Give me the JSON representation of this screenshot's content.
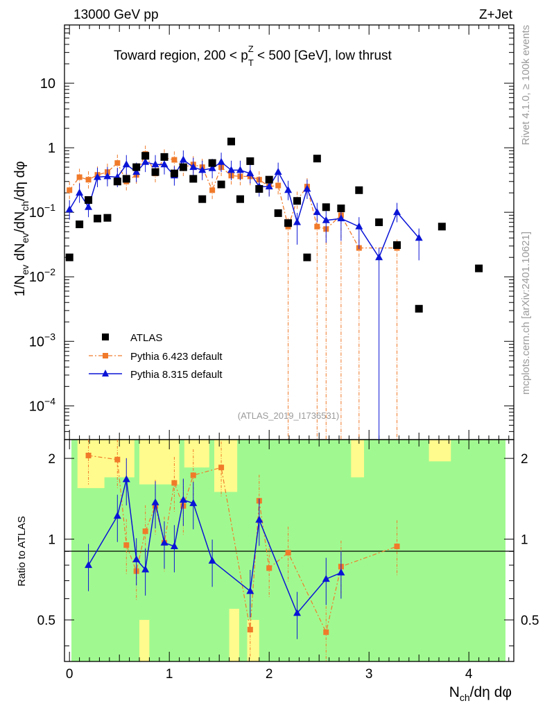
{
  "header": {
    "left": "13000 GeV pp",
    "right": "Z+Jet"
  },
  "side": {
    "rivet": "Rivet 4.1.0, ≥ 100k events",
    "mcplots": "mcplots.cern.ch [arXiv:2401.10621]"
  },
  "chart_data": {
    "type": "scatter",
    "title": "Toward region, 200 < p_T^Z < 500 [GeV], low thrust",
    "title_parts": {
      "a": "Toward region, 200 < p",
      "sub": "T",
      "sup": "Z",
      "b": " < 500 [GeV], low thrust"
    },
    "ylabel_parts": {
      "p1": "1/N",
      "s1": "ev",
      "p2": " dN",
      "s2": "ev",
      "p3": "/dN",
      "s3": "ch",
      "p4": "/dη dφ"
    },
    "xlabel_parts": {
      "p1": "N",
      "s1": "ch",
      "p2": "/dη dφ"
    },
    "ratio_ylabel": "Ratio to ATLAS",
    "analysis_tag": "(ATLAS_2019_I1736531)",
    "xlim": [
      -0.05,
      4.45
    ],
    "ylim": [
      3e-05,
      80
    ],
    "ratio_ylim": [
      0.35,
      2.35
    ],
    "x_ticks": [
      0,
      1,
      2,
      3,
      4
    ],
    "x_tick_labels": [
      "0",
      "1",
      "2",
      "3",
      "4"
    ],
    "y_ticks": [
      {
        "base": "10",
        "exp": "−4",
        "v": 0.0001
      },
      {
        "base": "10",
        "exp": "−3",
        "v": 0.001
      },
      {
        "base": "10",
        "exp": "−2",
        "v": 0.01
      },
      {
        "base": "10",
        "exp": "−1",
        "v": 0.1
      },
      {
        "base": "1",
        "exp": "",
        "v": 1
      },
      {
        "base": "10",
        "exp": "",
        "v": 10
      }
    ],
    "ratio_ticks": [
      0.5,
      1,
      2
    ],
    "ratio_tick_labels": [
      "0.5",
      "1",
      "2"
    ],
    "legend": [
      "ATLAS",
      "Pythia 6.423 default",
      "Pythia 8.315 default"
    ],
    "series": [
      {
        "name": "ATLAS",
        "x": [
          0.0,
          0.1,
          0.19,
          0.28,
          0.38,
          0.48,
          0.57,
          0.67,
          0.76,
          0.86,
          0.95,
          1.05,
          1.14,
          1.24,
          1.33,
          1.43,
          1.52,
          1.62,
          1.71,
          1.81,
          1.9,
          2.0,
          2.09,
          2.19,
          2.28,
          2.38,
          2.48,
          2.57,
          2.72,
          2.9,
          3.1,
          3.28,
          3.5,
          3.73,
          4.1
        ],
        "y": [
          0.02,
          0.065,
          0.155,
          0.08,
          0.082,
          0.3,
          0.33,
          0.5,
          0.75,
          0.42,
          0.72,
          0.4,
          0.5,
          0.33,
          0.16,
          0.58,
          0.27,
          1.25,
          0.16,
          0.62,
          0.23,
          0.32,
          0.097,
          0.068,
          0.15,
          0.02,
          0.68,
          0.12,
          0.115,
          0.22,
          0.07,
          0.031,
          0.0032,
          0.06,
          0.0135
        ]
      },
      {
        "name": "Pythia 6.423 default",
        "x": [
          0.0,
          0.1,
          0.19,
          0.28,
          0.38,
          0.48,
          0.57,
          0.67,
          0.76,
          0.86,
          0.95,
          1.05,
          1.14,
          1.24,
          1.33,
          1.43,
          1.52,
          1.62,
          1.71,
          1.81,
          1.9,
          2.0,
          2.09,
          2.19,
          2.28,
          2.38,
          2.48,
          2.57,
          2.72,
          2.9,
          3.28
        ],
        "y": [
          0.22,
          0.35,
          0.32,
          0.38,
          0.42,
          0.58,
          0.3,
          0.38,
          0.8,
          0.4,
          0.7,
          0.65,
          0.5,
          0.55,
          0.5,
          0.22,
          0.5,
          0.37,
          0.36,
          0.36,
          0.32,
          0.25,
          0.26,
          0.06,
          0.155,
          0.25,
          0.06,
          0.055,
          0.09,
          0.028,
          0.028
        ]
      },
      {
        "name": "Pythia 8.315 default",
        "x": [
          0.0,
          0.1,
          0.19,
          0.28,
          0.38,
          0.48,
          0.57,
          0.67,
          0.76,
          0.86,
          0.95,
          1.05,
          1.14,
          1.24,
          1.33,
          1.43,
          1.52,
          1.62,
          1.71,
          1.81,
          1.9,
          2.0,
          2.09,
          2.19,
          2.28,
          2.38,
          2.48,
          2.57,
          2.72,
          2.9,
          3.1,
          3.28,
          3.5
        ],
        "y": [
          0.11,
          0.2,
          0.12,
          0.35,
          0.36,
          0.35,
          0.55,
          0.42,
          0.6,
          0.55,
          0.55,
          0.37,
          0.65,
          0.5,
          0.45,
          0.48,
          0.6,
          0.45,
          0.45,
          0.4,
          0.25,
          0.25,
          0.42,
          0.22,
          0.07,
          0.23,
          0.1,
          0.075,
          0.08,
          0.06,
          0.02,
          0.1,
          0.04
        ]
      },
      {
        "name": "Pythia 6.423 / ATLAS",
        "x": [
          0.19,
          0.48,
          0.57,
          0.67,
          0.76,
          0.86,
          0.95,
          1.05,
          1.14,
          1.24,
          1.52,
          1.81,
          1.9,
          2.0,
          2.19,
          2.57,
          2.72,
          3.28
        ],
        "y": [
          2.05,
          1.98,
          0.95,
          0.76,
          1.07,
          1.33,
          0.97,
          1.62,
          1.33,
          1.73,
          1.85,
          0.46,
          1.39,
          0.78,
          0.89,
          0.45,
          0.79,
          0.94
        ]
      },
      {
        "name": "Pythia 8.315 / ATLAS",
        "x": [
          0.19,
          0.48,
          0.57,
          0.67,
          0.76,
          0.86,
          0.95,
          1.05,
          1.14,
          1.24,
          1.43,
          1.81,
          1.9,
          2.28,
          2.57,
          2.72
        ],
        "y": [
          0.8,
          1.22,
          1.67,
          0.84,
          0.77,
          1.37,
          0.97,
          0.94,
          1.4,
          1.36,
          0.83,
          0.64,
          1.18,
          0.53,
          0.71,
          0.75
        ]
      }
    ]
  }
}
